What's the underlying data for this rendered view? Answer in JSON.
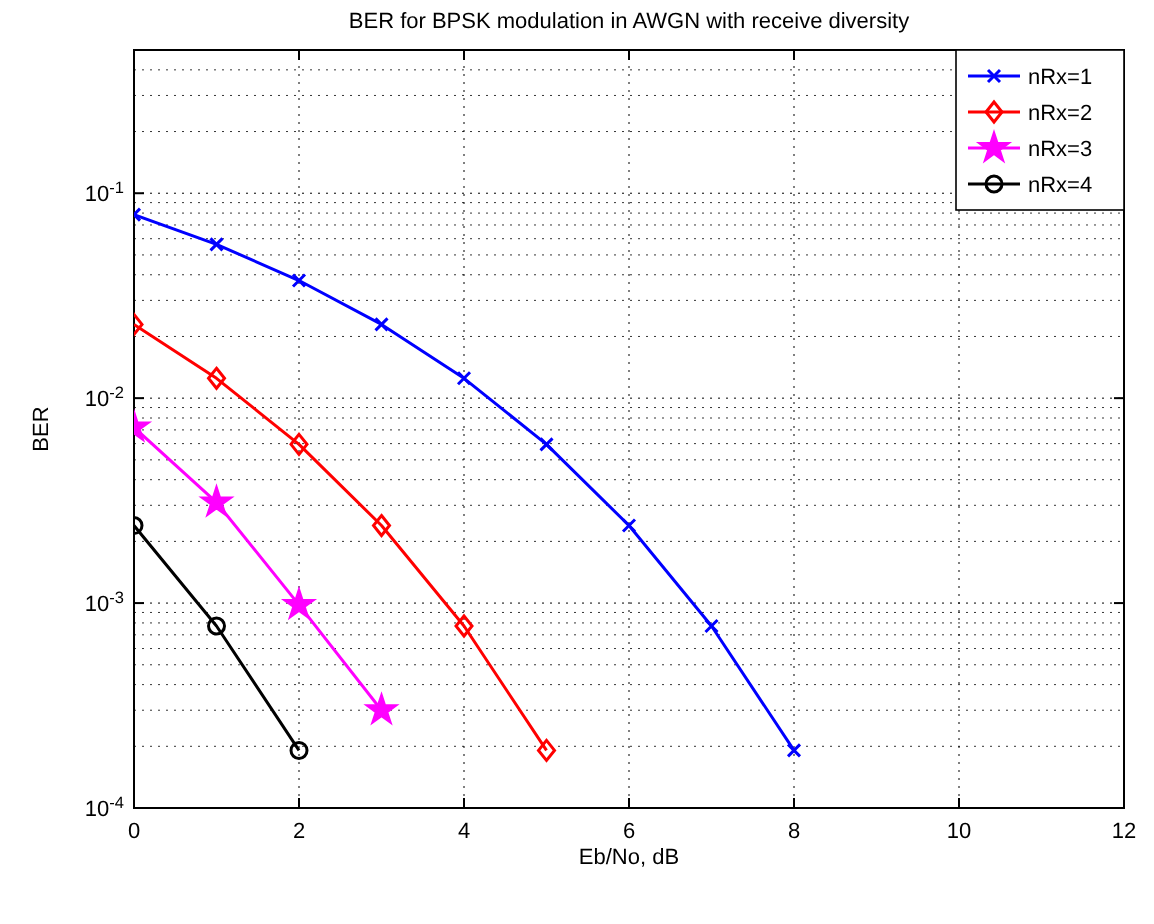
{
  "chart_data": {
    "type": "line",
    "title": "BER for BPSK modulation in AWGN with receive diversity",
    "xlabel": "Eb/No, dB",
    "ylabel": "BER",
    "x": [
      0,
      1,
      2,
      3,
      4,
      5,
      6,
      7,
      8
    ],
    "series": [
      {
        "name": "nRx=1",
        "color": "#0000ff",
        "marker": "cross",
        "values": [
          0.0786,
          0.0563,
          0.0375,
          0.0229,
          0.0125,
          0.00595,
          0.00239,
          0.000773,
          0.000191
        ]
      },
      {
        "name": "nRx=2",
        "color": "#ff0000",
        "marker": "diamond",
        "values": [
          0.0229,
          0.0125,
          0.00595,
          0.00239,
          0.000773,
          0.000191,
          null,
          null,
          null
        ]
      },
      {
        "name": "nRx=3",
        "color": "#ff00ff",
        "marker": "star",
        "values": [
          0.0072,
          0.0031,
          0.00098,
          0.0003,
          null,
          null,
          null,
          null,
          null
        ]
      },
      {
        "name": "nRx=4",
        "color": "#000000",
        "marker": "circle",
        "values": [
          0.00239,
          0.000773,
          0.000191,
          null,
          null,
          null,
          null,
          null,
          null
        ]
      }
    ],
    "log": "y",
    "xlim": [
      0,
      12
    ],
    "ylim": [
      0.0001,
      0.5
    ],
    "xticks": [
      0,
      2,
      4,
      6,
      8,
      10,
      12
    ],
    "yticks": [
      {
        "value": 0.0001,
        "label": "10$^{-4}$"
      },
      {
        "value": 0.001,
        "label": "10$^{-3}$"
      },
      {
        "value": 0.01,
        "label": "10$^{-2}$"
      },
      {
        "value": 0.1,
        "label": "10$^{-1}$"
      }
    ],
    "grid": true,
    "legend": "top right",
    "line_style": "solid"
  }
}
